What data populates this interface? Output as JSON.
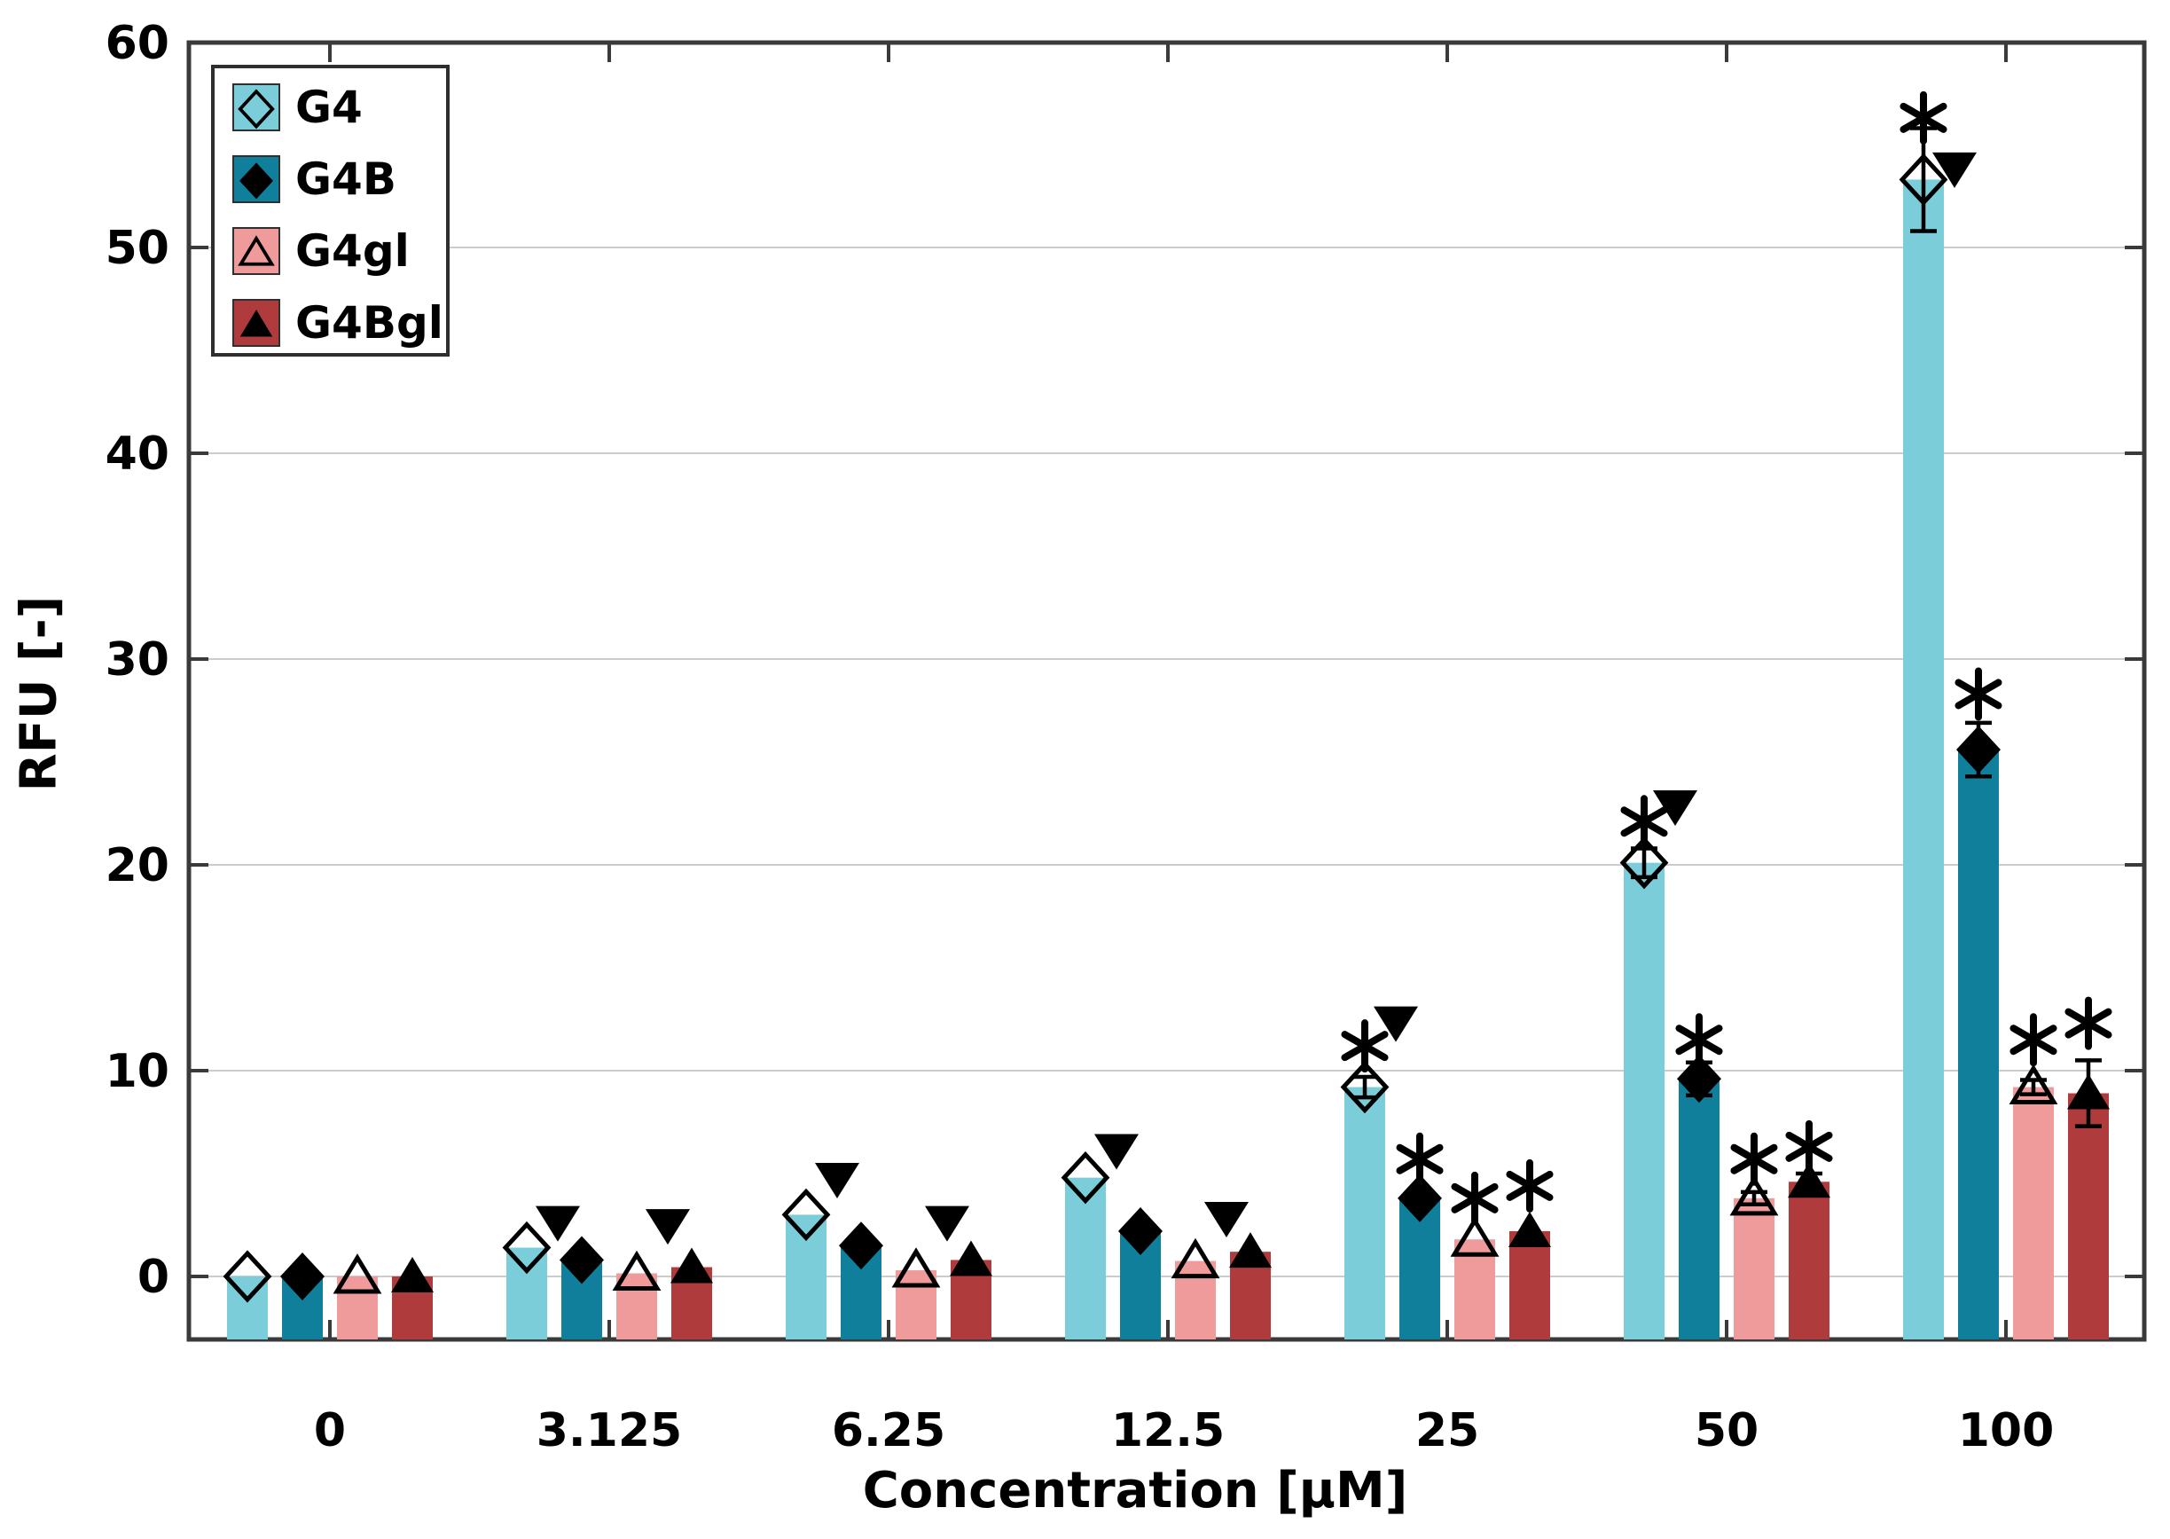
{
  "figure": {
    "background": "#ffffff",
    "frame_color": "#3a3a3a",
    "grid_color": "#cccccc",
    "text_color": "#000000",
    "error_bar_color": "#000000",
    "annotation_color": "#000000"
  },
  "chart_data": {
    "type": "bar",
    "title": "",
    "xlabel": "Concentration [μM]",
    "ylabel": "RFU [-]",
    "categories": [
      "0",
      "3.125",
      "6.25",
      "12.5",
      "25",
      "50",
      "100"
    ],
    "yticks": [
      0,
      10,
      20,
      30,
      40,
      50,
      60
    ],
    "ylim": [
      -3.1,
      60
    ],
    "grid": "horizontal",
    "legend_position": "top-left-inside",
    "annotation_symbols": [
      "asterisk",
      "filled-down-triangle"
    ],
    "series": [
      {
        "name": "G4",
        "color": "#7BCDDA",
        "marker": "open-diamond",
        "values": [
          0,
          1.4,
          3.0,
          4.8,
          9.2,
          20.1,
          53.3
        ],
        "errors": [
          0,
          0,
          0,
          0,
          0.5,
          0.7,
          2.5
        ],
        "star_y": [
          null,
          null,
          null,
          null,
          11.2,
          22.1,
          56.3
        ],
        "tri_y": [
          null,
          2.6,
          4.7,
          6.1,
          12.3,
          22.8,
          53.8
        ]
      },
      {
        "name": "G4B",
        "color": "#0F7F9C",
        "marker": "filled-diamond",
        "values": [
          0,
          0.8,
          1.5,
          2.2,
          3.8,
          9.6,
          25.6
        ],
        "errors": [
          0,
          0,
          0,
          0,
          0,
          0.8,
          1.3
        ],
        "star_y": [
          null,
          null,
          null,
          null,
          5.7,
          11.5,
          28.3
        ],
        "tri_y": [
          null,
          null,
          null,
          null,
          null,
          null,
          null
        ]
      },
      {
        "name": "G4gl",
        "color": "#EF9B9C",
        "marker": "open-triangle",
        "values": [
          0,
          0.15,
          0.3,
          0.75,
          1.8,
          3.8,
          9.2
        ],
        "errors": [
          0,
          0,
          0,
          0,
          0,
          0.3,
          0.35
        ],
        "star_y": [
          null,
          null,
          null,
          null,
          3.8,
          5.7,
          11.5
        ],
        "tri_y": [
          null,
          2.45,
          2.6,
          2.8,
          null,
          null,
          null
        ]
      },
      {
        "name": "G4Bgl",
        "color": "#B03B3C",
        "marker": "filled-triangle",
        "values": [
          0,
          0.45,
          0.8,
          1.2,
          2.2,
          4.6,
          8.9
        ],
        "errors": [
          0,
          0,
          0,
          0,
          0,
          0.4,
          1.6
        ],
        "star_y": [
          null,
          null,
          null,
          null,
          4.4,
          6.3,
          12.3
        ],
        "tri_y": [
          null,
          null,
          null,
          null,
          null,
          null,
          null
        ]
      }
    ]
  }
}
